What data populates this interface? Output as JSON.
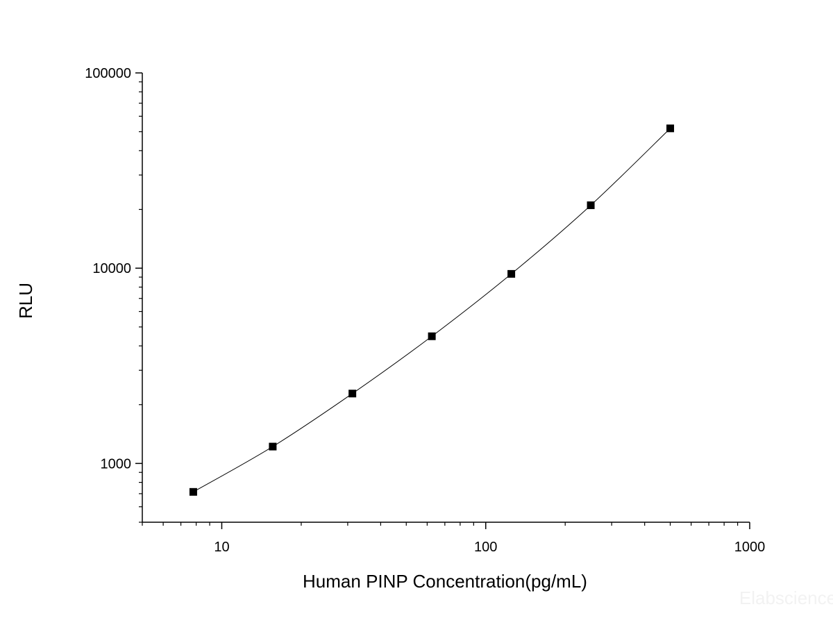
{
  "chart_data": {
    "type": "scatter",
    "xlabel": "Human PINP Concentration(pg/mL)",
    "ylabel": "RLU",
    "xscale": "log",
    "yscale": "log",
    "xlim": [
      5,
      1000
    ],
    "ylim": [
      500,
      100000
    ],
    "xticks": [
      10,
      100,
      1000
    ],
    "xtick_labels": [
      "10",
      "100",
      "1000"
    ],
    "yticks": [
      1000,
      10000,
      100000
    ],
    "ytick_labels": [
      "1000",
      "10000",
      "100000"
    ],
    "grid": false,
    "marker": "square",
    "series": [
      {
        "x": [
          7.8,
          15.6,
          31.25,
          62.5,
          125,
          250,
          500
        ],
        "y": [
          715,
          1220,
          2280,
          4480,
          9350,
          21000,
          52000
        ]
      }
    ],
    "colors": {
      "marker": "#000000",
      "line": "#000000",
      "axis": "#000000"
    }
  },
  "watermark": "Elabscience"
}
